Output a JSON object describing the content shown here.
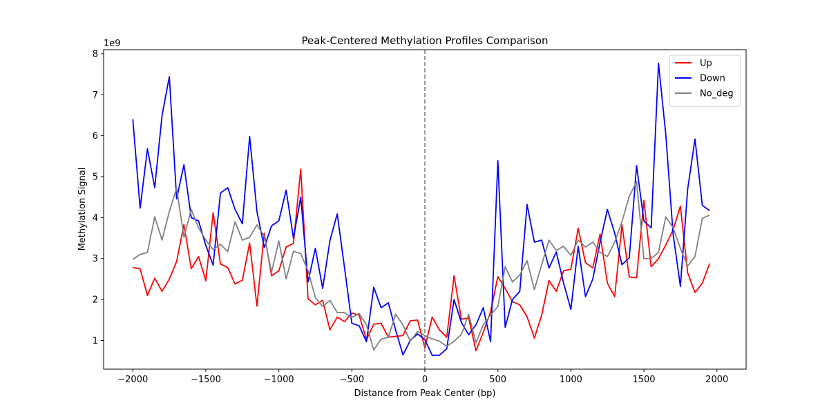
{
  "chart_data": {
    "type": "line",
    "title": "Peak-Centered Methylation Profiles Comparison",
    "xlabel": "Distance from Peak Center (bp)",
    "ylabel": "Methylation Signal",
    "y_scale_label": "1e9",
    "xlim": [
      -2200,
      2200
    ],
    "ylim": [
      0.3,
      8.1
    ],
    "xticks": [
      -2000,
      -1500,
      -1000,
      -500,
      0,
      500,
      1000,
      1500,
      2000
    ],
    "xtick_labels": [
      "−2000",
      "−1500",
      "−1000",
      "−500",
      "0",
      "500",
      "1000",
      "1500",
      "2000"
    ],
    "yticks": [
      1,
      2,
      3,
      4,
      5,
      6,
      7,
      8
    ],
    "ytick_labels": [
      "1",
      "2",
      "3",
      "4",
      "5",
      "6",
      "7",
      "8"
    ],
    "vline_x": 0,
    "legend_position": "top-right",
    "x": [
      -2000,
      -1950,
      -1900,
      -1850,
      -1800,
      -1750,
      -1700,
      -1650,
      -1600,
      -1550,
      -1500,
      -1450,
      -1400,
      -1350,
      -1300,
      -1250,
      -1200,
      -1150,
      -1100,
      -1050,
      -1000,
      -950,
      -900,
      -850,
      -800,
      -750,
      -700,
      -650,
      -600,
      -550,
      -500,
      -450,
      -400,
      -350,
      -300,
      -250,
      -200,
      -150,
      -100,
      -50,
      0,
      50,
      100,
      150,
      200,
      250,
      300,
      350,
      400,
      450,
      500,
      550,
      600,
      650,
      700,
      750,
      800,
      850,
      900,
      950,
      1000,
      1050,
      1100,
      1150,
      1200,
      1250,
      1300,
      1350,
      1400,
      1450,
      1500,
      1550,
      1600,
      1650,
      1700,
      1750,
      1800,
      1850,
      1900,
      1950,
      2000
    ],
    "series": [
      {
        "name": "Up",
        "color": "#ff0000",
        "values": [
          2.78,
          2.75,
          2.1,
          2.52,
          2.2,
          2.5,
          2.93,
          3.83,
          2.75,
          3.05,
          2.46,
          4.12,
          2.87,
          2.78,
          2.38,
          2.47,
          3.38,
          1.84,
          3.62,
          2.58,
          2.7,
          3.28,
          3.37,
          5.18,
          2.02,
          1.87,
          1.98,
          1.26,
          1.57,
          1.46,
          1.67,
          1.62,
          1.02,
          1.4,
          1.42,
          1.08,
          1.1,
          1.12,
          1.48,
          1.5,
          0.82,
          1.57,
          1.26,
          1.08,
          2.58,
          1.52,
          1.55,
          0.75,
          1.2,
          1.7,
          2.56,
          2.27,
          1.95,
          1.87,
          1.58,
          1.06,
          1.62,
          2.46,
          2.2,
          2.7,
          2.74,
          3.74,
          2.9,
          2.77,
          3.6,
          2.4,
          2.07,
          3.82,
          2.55,
          2.53,
          4.42,
          2.8,
          3.0,
          3.33,
          3.7,
          4.28,
          2.65,
          2.17,
          2.4,
          2.88,
          null
        ],
        "trim": 80
      },
      {
        "name": "Down",
        "color": "#0000ff",
        "values": [
          6.4,
          4.23,
          5.68,
          4.73,
          6.49,
          7.44,
          4.46,
          5.29,
          4.0,
          3.92,
          3.32,
          2.84,
          4.6,
          4.73,
          4.2,
          3.85,
          5.98,
          4.15,
          3.27,
          3.8,
          3.92,
          4.67,
          3.5,
          4.5,
          2.43,
          3.25,
          2.27,
          3.44,
          4.09,
          2.77,
          1.42,
          1.36,
          0.97,
          2.3,
          1.8,
          1.92,
          1.25,
          0.65,
          1.0,
          1.16,
          1.02,
          0.64,
          0.64,
          0.8,
          2.0,
          1.44,
          1.14,
          1.38,
          1.8,
          0.97,
          5.39,
          1.32,
          2.0,
          2.2,
          4.32,
          3.4,
          3.45,
          2.77,
          3.16,
          2.4,
          1.76,
          3.3,
          2.07,
          2.5,
          3.4,
          4.2,
          3.62,
          2.85,
          3.02,
          5.27,
          3.92,
          3.75,
          7.77,
          6.03,
          3.6,
          2.32,
          4.7,
          5.92,
          4.3,
          4.17,
          null
        ],
        "trim": 80
      },
      {
        "name": "No_deg",
        "color": "#808080",
        "values": [
          2.98,
          3.1,
          3.15,
          4.02,
          3.45,
          4.15,
          4.72,
          3.52,
          4.2,
          3.75,
          3.45,
          3.22,
          3.35,
          3.17,
          3.9,
          3.45,
          3.52,
          3.82,
          3.55,
          2.67,
          3.43,
          2.5,
          3.18,
          3.12,
          2.7,
          2.05,
          1.83,
          1.98,
          1.68,
          1.68,
          1.56,
          1.66,
          1.38,
          0.77,
          1.03,
          1.08,
          1.64,
          1.38,
          0.98,
          1.22,
          1.12,
          1.04,
          0.98,
          0.86,
          0.98,
          1.15,
          1.64,
          0.95,
          1.38,
          1.62,
          1.83,
          2.8,
          2.43,
          2.6,
          2.95,
          2.24,
          2.85,
          3.45,
          3.2,
          3.3,
          3.08,
          3.45,
          3.28,
          3.4,
          3.15,
          3.05,
          3.4,
          3.9,
          4.52,
          4.88,
          3.0,
          3.0,
          3.15,
          4.02,
          3.75,
          3.25,
          2.82,
          3.05,
          3.98,
          4.06,
          null
        ],
        "trim": 80
      }
    ]
  }
}
